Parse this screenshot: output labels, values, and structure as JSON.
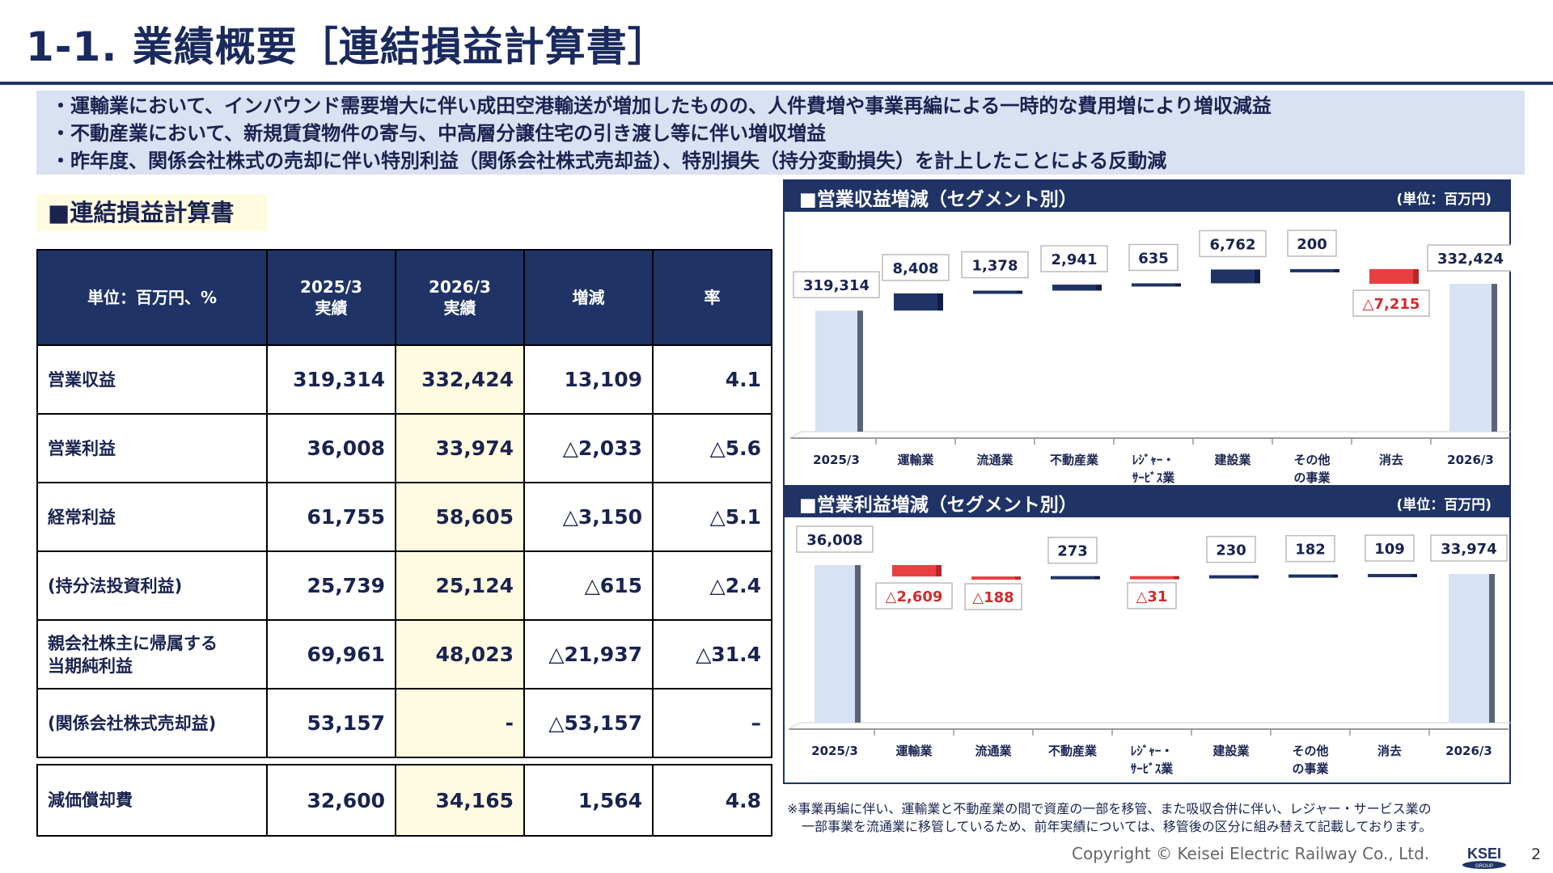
{
  "title": "1-1. 業績概要［連結損益計算書］",
  "summary": [
    "・運輸業において、インバウンド需要増大に伴い成田空港輸送が増加したものの、人件費増や事業再編による一時的な費用増により増収減益",
    "・不動産業において、新規賃貸物件の寄与、中高層分譲住宅の引き渡し等に伴い増収増益",
    "・昨年度、関係会社株式の売却に伴い特別利益（関係会社株式売却益）、特別損失（持分変動損失）を計上したことによる反動減"
  ],
  "section_label": "■連結損益計算書",
  "table": {
    "headers": [
      "単位：百万円、%",
      "2025/3\n実績",
      "2026/3\n実績",
      "増減",
      "率"
    ],
    "rows": [
      {
        "label": "営業収益",
        "prev": "319,314",
        "curr": "332,424",
        "diff": "13,109",
        "rate": "4.1"
      },
      {
        "label": "営業利益",
        "prev": "36,008",
        "curr": "33,974",
        "diff": "△2,033",
        "rate": "△5.6"
      },
      {
        "label": "経常利益",
        "prev": "61,755",
        "curr": "58,605",
        "diff": "△3,150",
        "rate": "△5.1"
      },
      {
        "label": "(持分法投資利益)",
        "prev": "25,739",
        "curr": "25,124",
        "diff": "△615",
        "rate": "△2.4"
      },
      {
        "label": "親会社株主に帰属する\n当期純利益",
        "prev": "69,961",
        "curr": "48,023",
        "diff": "△21,937",
        "rate": "△31.4"
      },
      {
        "label": "(関係会社株式売却益)",
        "prev": "53,157",
        "curr": "-",
        "diff": "△53,157",
        "rate": "–"
      }
    ],
    "depreciation": {
      "label": "減価償却費",
      "prev": "32,600",
      "curr": "34,165",
      "diff": "1,564",
      "rate": "4.8"
    }
  },
  "chart_data": [
    {
      "type": "bar",
      "title": "■営業収益増減（セグメント別）",
      "unit_label": "(単位：百万円)",
      "categories": [
        "2025/3",
        "運輸業",
        "流通業",
        "不動産業",
        "ﾚｼﾞｬｰ・\nｻｰﾋﾞｽ業",
        "建設業",
        "その他\nの事業",
        "消去",
        "2026/3"
      ],
      "values": [
        319314,
        8408,
        1378,
        2941,
        635,
        6762,
        200,
        -7215,
        332424
      ],
      "value_labels": [
        "319,314",
        "8,408",
        "1,378",
        "2,941",
        "635",
        "6,762",
        "200",
        "△7,215",
        "332,424"
      ]
    },
    {
      "type": "bar",
      "title": "■営業利益増減（セグメント別）",
      "unit_label": "(単位：百万円)",
      "categories": [
        "2025/3",
        "運輸業",
        "流通業",
        "不動産業",
        "ﾚｼﾞｬｰ・\nｻｰﾋﾞｽ業",
        "建設業",
        "その他\nの事業",
        "消去",
        "2026/3"
      ],
      "values": [
        36008,
        -2609,
        -188,
        273,
        -31,
        230,
        182,
        109,
        33974
      ],
      "value_labels": [
        "36,008",
        "△2,609",
        "△188",
        "273",
        "△31",
        "230",
        "182",
        "109",
        "33,974"
      ]
    }
  ],
  "footnote": [
    "※事業再編に伴い、運輸業と不動産業の間で資産の一部を移管、また吸収合併に伴い、レジャー・サービス業の",
    "一部事業を流通業に移管しているため、前年実績については、移管後の区分に組み替えて記載しております。"
  ],
  "copyright": "Copyright ©  Keisei Electric Railway Co., Ltd.",
  "logo_text": "KSEI",
  "logo_sub": "GROUP",
  "page_number": "2",
  "colors": {
    "navy": "#1f3366",
    "increase": "#1f3366",
    "decrease": "#e84040",
    "total": "#d7e2f4",
    "highlight": "#fffbe0"
  }
}
